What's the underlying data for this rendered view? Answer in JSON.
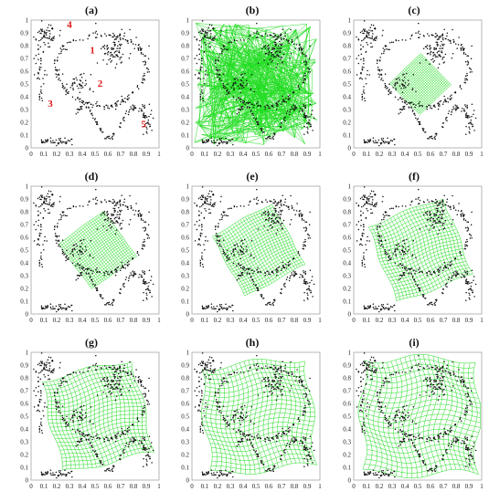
{
  "panels": [
    {
      "label": "(a)",
      "kind": "data",
      "cluster_labels": [
        "1",
        "2",
        "3",
        "4",
        "5"
      ]
    },
    {
      "label": "(b)",
      "kind": "random"
    },
    {
      "label": "(c)",
      "kind": "som",
      "stage": 0.15
    },
    {
      "label": "(d)",
      "kind": "som",
      "stage": 0.3
    },
    {
      "label": "(e)",
      "kind": "som",
      "stage": 0.45
    },
    {
      "label": "(f)",
      "kind": "som",
      "stage": 0.6
    },
    {
      "label": "(g)",
      "kind": "som",
      "stage": 0.75
    },
    {
      "label": "(h)",
      "kind": "som",
      "stage": 0.9
    },
    {
      "label": "(i)",
      "kind": "som",
      "stage": 1.0
    }
  ],
  "axes": {
    "xticks": [
      "0",
      "0.1",
      "0.2",
      "0.3",
      "0.4",
      "0.5",
      "0.6",
      "0.7",
      "0.8",
      "0.9",
      "1"
    ],
    "yticks": [
      "0",
      "0.1",
      "0.2",
      "0.3",
      "0.4",
      "0.5",
      "0.6",
      "0.7",
      "0.8",
      "0.9",
      "1"
    ],
    "xlim": [
      0,
      1
    ],
    "ylim": [
      0,
      1
    ]
  },
  "colors": {
    "grid": "#22dd22",
    "points": "#111111",
    "cluster_label": "#e01818",
    "frame": "#999999"
  }
}
